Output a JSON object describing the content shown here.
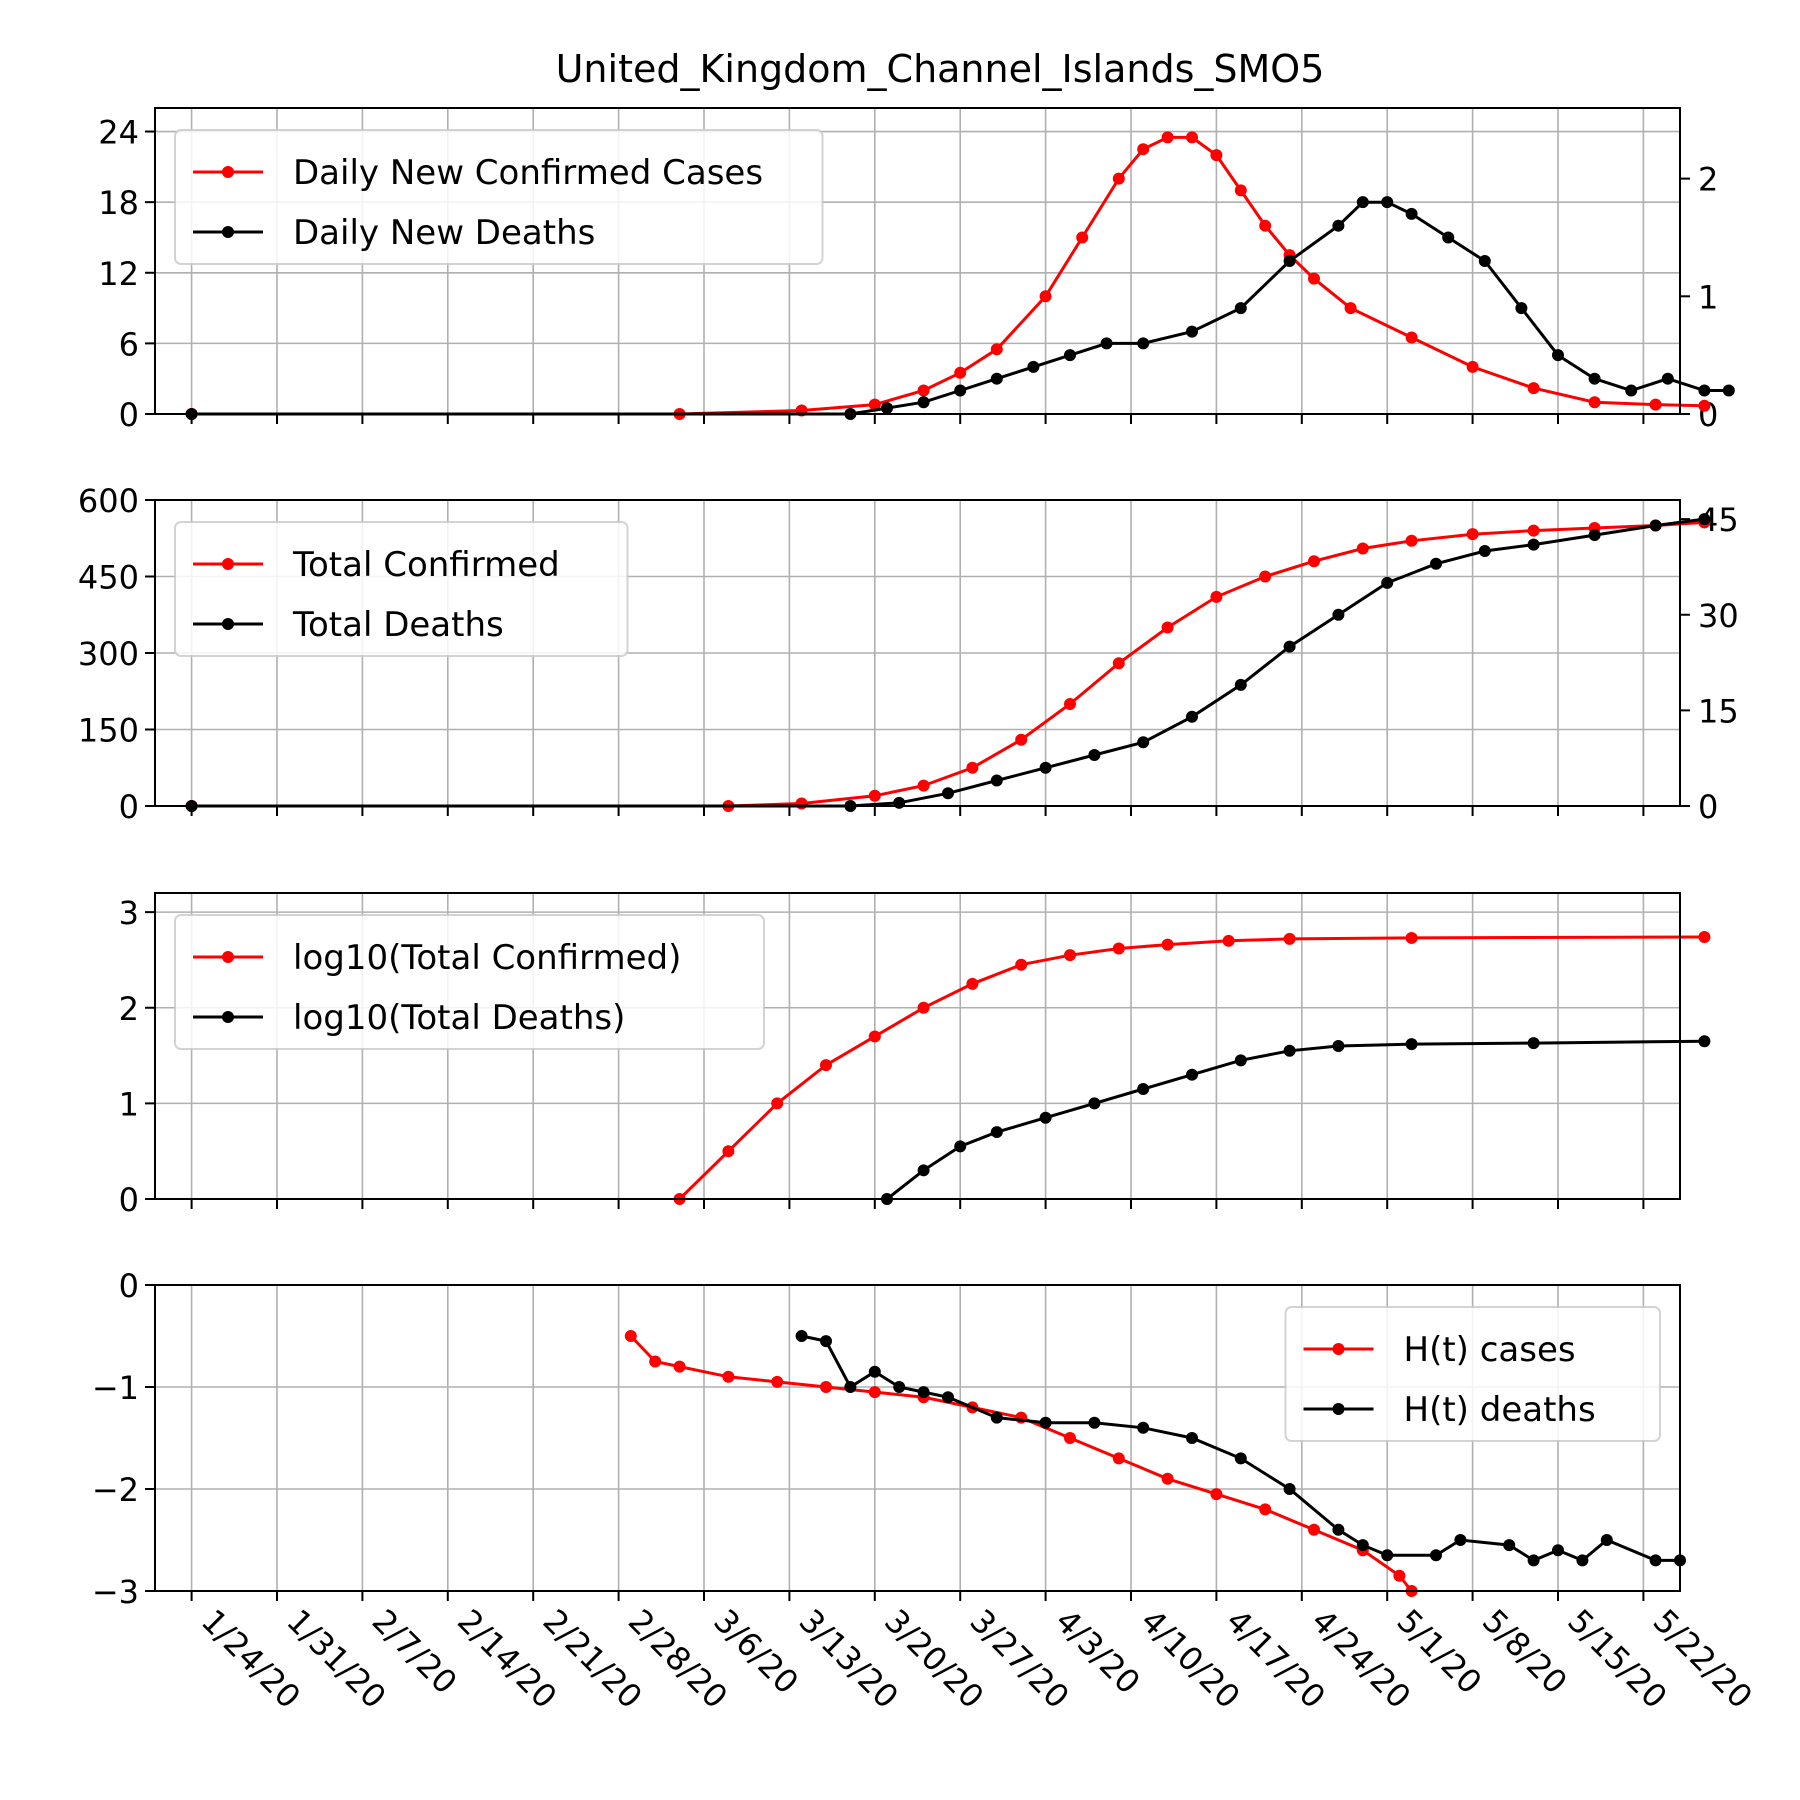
{
  "title": "United_Kingdom_Channel_Islands_SMO5",
  "colors": {
    "cases": "#ff0000",
    "deaths": "#000000"
  },
  "x_dates": [
    "1/24/20",
    "1/31/20",
    "2/7/20",
    "2/14/20",
    "2/21/20",
    "2/28/20",
    "3/6/20",
    "3/13/20",
    "3/20/20",
    "3/27/20",
    "4/3/20",
    "4/10/20",
    "4/17/20",
    "4/24/20",
    "5/1/20",
    "5/8/20",
    "5/15/20",
    "5/22/20"
  ],
  "chart_data": [
    {
      "type": "line",
      "panel": "daily",
      "legend_position": "upper left",
      "grid": true,
      "xlim": [
        -3,
        122
      ],
      "ylim": [
        0,
        26
      ],
      "ylim_right": [
        0,
        2.6
      ],
      "yticks": [
        0,
        6,
        12,
        18,
        24
      ],
      "yticks_right": [
        0,
        1,
        2
      ],
      "series": [
        {
          "name": "Daily New Confirmed Cases",
          "color": "cases",
          "axis": "left",
          "points": [
            [
              0,
              0
            ],
            [
              40,
              0
            ],
            [
              50,
              0.3
            ],
            [
              56,
              0.8
            ],
            [
              60,
              2
            ],
            [
              63,
              3.5
            ],
            [
              66,
              5.5
            ],
            [
              70,
              10
            ],
            [
              73,
              15
            ],
            [
              76,
              20
            ],
            [
              78,
              22.5
            ],
            [
              80,
              23.5
            ],
            [
              82,
              23.5
            ],
            [
              84,
              22
            ],
            [
              86,
              19
            ],
            [
              88,
              16
            ],
            [
              90,
              13.5
            ],
            [
              92,
              11.5
            ],
            [
              95,
              9
            ],
            [
              100,
              6.5
            ],
            [
              105,
              4
            ],
            [
              110,
              2.2
            ],
            [
              115,
              1
            ],
            [
              120,
              0.8
            ],
            [
              124,
              0.7
            ]
          ]
        },
        {
          "name": "Daily New Deaths",
          "color": "deaths",
          "axis": "right",
          "points": [
            [
              0,
              0
            ],
            [
              54,
              0
            ],
            [
              57,
              0.05
            ],
            [
              60,
              0.1
            ],
            [
              63,
              0.2
            ],
            [
              66,
              0.3
            ],
            [
              69,
              0.4
            ],
            [
              72,
              0.5
            ],
            [
              75,
              0.6
            ],
            [
              78,
              0.6
            ],
            [
              82,
              0.7
            ],
            [
              86,
              0.9
            ],
            [
              90,
              1.3
            ],
            [
              94,
              1.6
            ],
            [
              96,
              1.8
            ],
            [
              98,
              1.8
            ],
            [
              100,
              1.7
            ],
            [
              103,
              1.5
            ],
            [
              106,
              1.3
            ],
            [
              109,
              0.9
            ],
            [
              112,
              0.5
            ],
            [
              115,
              0.3
            ],
            [
              118,
              0.2
            ],
            [
              121,
              0.3
            ],
            [
              124,
              0.2
            ],
            [
              126,
              0.2
            ]
          ]
        }
      ]
    },
    {
      "type": "line",
      "panel": "total",
      "legend_position": "upper left",
      "grid": true,
      "xlim": [
        -3,
        122
      ],
      "ylim": [
        0,
        600
      ],
      "ylim_right": [
        0,
        48
      ],
      "yticks": [
        0,
        150,
        300,
        450,
        600
      ],
      "yticks_right": [
        0,
        15,
        30,
        45
      ],
      "series": [
        {
          "name": "Total Confirmed",
          "color": "cases",
          "axis": "left",
          "points": [
            [
              0,
              0
            ],
            [
              44,
              0
            ],
            [
              50,
              5
            ],
            [
              56,
              20
            ],
            [
              60,
              40
            ],
            [
              64,
              75
            ],
            [
              68,
              130
            ],
            [
              72,
              200
            ],
            [
              76,
              280
            ],
            [
              80,
              350
            ],
            [
              84,
              410
            ],
            [
              88,
              450
            ],
            [
              92,
              480
            ],
            [
              96,
              505
            ],
            [
              100,
              520
            ],
            [
              105,
              533
            ],
            [
              110,
              540
            ],
            [
              115,
              545
            ],
            [
              120,
              550
            ],
            [
              124,
              556
            ]
          ]
        },
        {
          "name": "Total Deaths",
          "color": "deaths",
          "axis": "right",
          "points": [
            [
              0,
              0
            ],
            [
              54,
              0
            ],
            [
              58,
              0.5
            ],
            [
              62,
              2
            ],
            [
              66,
              4
            ],
            [
              70,
              6
            ],
            [
              74,
              8
            ],
            [
              78,
              10
            ],
            [
              82,
              14
            ],
            [
              86,
              19
            ],
            [
              90,
              25
            ],
            [
              94,
              30
            ],
            [
              98,
              35
            ],
            [
              102,
              38
            ],
            [
              106,
              40
            ],
            [
              110,
              41
            ],
            [
              115,
              42.5
            ],
            [
              120,
              44
            ],
            [
              124,
              45
            ]
          ]
        }
      ]
    },
    {
      "type": "line",
      "panel": "log",
      "legend_position": "upper left",
      "grid": true,
      "xlim": [
        -3,
        122
      ],
      "ylim": [
        0,
        3.2
      ],
      "yticks": [
        0,
        1,
        2,
        3
      ],
      "series": [
        {
          "name": "log10(Total Confirmed)",
          "color": "cases",
          "axis": "left",
          "points": [
            [
              40,
              0
            ],
            [
              44,
              0.5
            ],
            [
              48,
              1.0
            ],
            [
              52,
              1.4
            ],
            [
              56,
              1.7
            ],
            [
              60,
              2.0
            ],
            [
              64,
              2.25
            ],
            [
              68,
              2.45
            ],
            [
              72,
              2.55
            ],
            [
              76,
              2.62
            ],
            [
              80,
              2.66
            ],
            [
              85,
              2.7
            ],
            [
              90,
              2.72
            ],
            [
              100,
              2.73
            ],
            [
              124,
              2.74
            ]
          ]
        },
        {
          "name": "log10(Total Deaths)",
          "color": "deaths",
          "axis": "left",
          "points": [
            [
              57,
              0
            ],
            [
              60,
              0.3
            ],
            [
              63,
              0.55
            ],
            [
              66,
              0.7
            ],
            [
              70,
              0.85
            ],
            [
              74,
              1.0
            ],
            [
              78,
              1.15
            ],
            [
              82,
              1.3
            ],
            [
              86,
              1.45
            ],
            [
              90,
              1.55
            ],
            [
              94,
              1.6
            ],
            [
              100,
              1.62
            ],
            [
              110,
              1.63
            ],
            [
              124,
              1.65
            ]
          ]
        }
      ]
    },
    {
      "type": "line",
      "panel": "hurst",
      "legend_position": "upper right",
      "grid": true,
      "xlim": [
        -3,
        122
      ],
      "ylim": [
        -3,
        0
      ],
      "yticks": [
        0,
        -1,
        -2,
        -3
      ],
      "series": [
        {
          "name": "H(t) cases",
          "color": "cases",
          "axis": "left",
          "points": [
            [
              36,
              -0.5
            ],
            [
              38,
              -0.75
            ],
            [
              40,
              -0.8
            ],
            [
              44,
              -0.9
            ],
            [
              48,
              -0.95
            ],
            [
              52,
              -1.0
            ],
            [
              56,
              -1.05
            ],
            [
              60,
              -1.1
            ],
            [
              64,
              -1.2
            ],
            [
              68,
              -1.3
            ],
            [
              72,
              -1.5
            ],
            [
              76,
              -1.7
            ],
            [
              80,
              -1.9
            ],
            [
              84,
              -2.05
            ],
            [
              88,
              -2.2
            ],
            [
              92,
              -2.4
            ],
            [
              96,
              -2.6
            ],
            [
              99,
              -2.85
            ],
            [
              100,
              -3.0
            ]
          ]
        },
        {
          "name": "H(t) deaths",
          "color": "deaths",
          "axis": "left",
          "points": [
            [
              50,
              -0.5
            ],
            [
              52,
              -0.55
            ],
            [
              54,
              -1.0
            ],
            [
              56,
              -0.85
            ],
            [
              58,
              -1.0
            ],
            [
              60,
              -1.05
            ],
            [
              62,
              -1.1
            ],
            [
              66,
              -1.3
            ],
            [
              70,
              -1.35
            ],
            [
              74,
              -1.35
            ],
            [
              78,
              -1.4
            ],
            [
              82,
              -1.5
            ],
            [
              86,
              -1.7
            ],
            [
              90,
              -2.0
            ],
            [
              94,
              -2.4
            ],
            [
              96,
              -2.55
            ],
            [
              98,
              -2.65
            ],
            [
              102,
              -2.65
            ],
            [
              104,
              -2.5
            ],
            [
              108,
              -2.55
            ],
            [
              110,
              -2.7
            ],
            [
              112,
              -2.6
            ],
            [
              114,
              -2.7
            ],
            [
              116,
              -2.5
            ],
            [
              120,
              -2.7
            ],
            [
              122,
              -2.7
            ]
          ]
        }
      ]
    }
  ]
}
